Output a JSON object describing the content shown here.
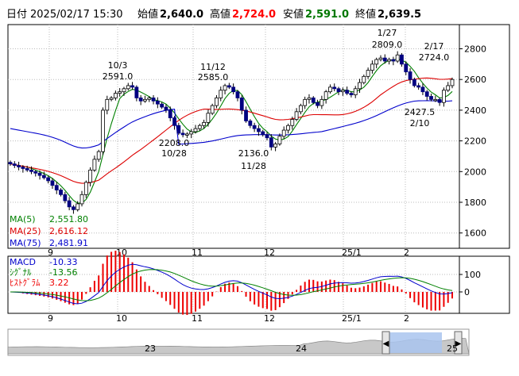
{
  "header": {
    "date_label": "日付",
    "datetime": "2025/02/17 15:30",
    "open_label": "始値",
    "open": "2,640.0",
    "high_label": "高値",
    "high": "2,724.0",
    "low_label": "安値",
    "low": "2,591.0",
    "close_label": "終値",
    "close": "2,639.5"
  },
  "colors": {
    "up": "#ffffff",
    "down": "#000080",
    "high": "#ff0000",
    "low": "#007700",
    "ma5": "#008000",
    "ma25": "#dd0000",
    "ma75": "#0000cc",
    "macd": "#0000cc",
    "signal": "#008000",
    "hist": "#ee0000"
  },
  "chart_data": {
    "type": "candlestick",
    "ylim": [
      1500,
      2900
    ],
    "y_ticks": [
      "1600",
      "1800",
      "2000",
      "2200",
      "2400",
      "2600",
      "2800"
    ],
    "x_labels": [
      "9",
      "10",
      "11",
      "12",
      "25/1",
      "2"
    ],
    "ma_legend": [
      {
        "name": "MA(5)",
        "value": "2,551.80"
      },
      {
        "name": "MA(25)",
        "value": "2,616.12"
      },
      {
        "name": "MA(75)",
        "value": "2,481.91"
      }
    ],
    "annotations": [
      {
        "date": "10/3",
        "value": "2591.0"
      },
      {
        "date": "11/12",
        "value": "2585.0"
      },
      {
        "date": "10/28",
        "value": "2208.0"
      },
      {
        "date": "11/28",
        "value": "2136.0"
      },
      {
        "date": "1/27",
        "value": "2809.0"
      },
      {
        "date": "2/17",
        "value": "2724.0"
      },
      {
        "date": "2/10",
        "value": "2427.5"
      }
    ],
    "closes": [
      2050,
      2040,
      2030,
      2020,
      2010,
      2000,
      1990,
      1975,
      1960,
      1940,
      1910,
      1880,
      1850,
      1810,
      1770,
      1752,
      1790,
      1850,
      1930,
      2010,
      2080,
      2130,
      2400,
      2470,
      2480,
      2510,
      2520,
      2540,
      2560,
      2550,
      2480,
      2460,
      2470,
      2480,
      2460,
      2440,
      2420,
      2400,
      2350,
      2300,
      2250,
      2240,
      2245,
      2260,
      2280,
      2300,
      2320,
      2380,
      2430,
      2480,
      2530,
      2560,
      2550,
      2520,
      2480,
      2400,
      2330,
      2300,
      2280,
      2260,
      2240,
      2220,
      2160,
      2180,
      2230,
      2270,
      2300,
      2340,
      2390,
      2430,
      2470,
      2480,
      2450,
      2430,
      2470,
      2520,
      2550,
      2540,
      2520,
      2530,
      2510,
      2500,
      2540,
      2580,
      2620,
      2660,
      2700,
      2730,
      2740,
      2720,
      2730,
      2720,
      2760,
      2700,
      2650,
      2600,
      2560,
      2550,
      2520,
      2490,
      2470,
      2470,
      2450,
      2530,
      2560,
      2600
    ],
    "macd_panel": {
      "ylim": [
        -60,
        150
      ],
      "y_ticks": [
        "100",
        "0"
      ],
      "legend": [
        {
          "name": "MACD",
          "value": "-10.33"
        },
        {
          "name": "ｼｸﾞﾅﾙ",
          "value": "-13.56"
        },
        {
          "name": "ﾋｽﾄｸﾞﾗﾑ",
          "value": "3.22"
        }
      ]
    },
    "navigator": {
      "labels": [
        "23",
        "24",
        "25"
      ]
    }
  }
}
